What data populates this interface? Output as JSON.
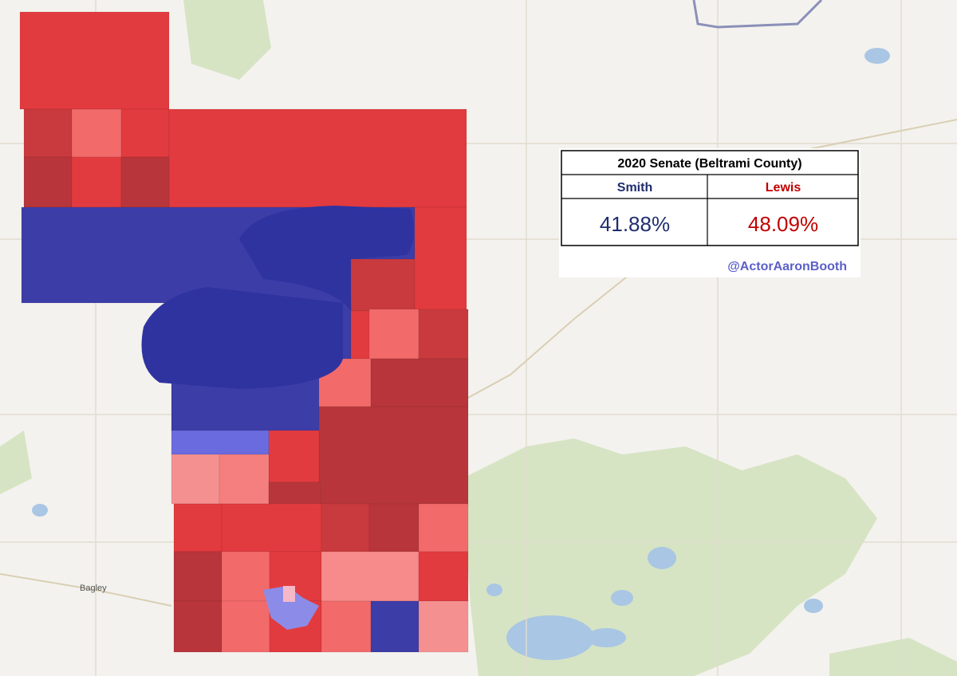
{
  "map": {
    "place_label": "Bagley"
  },
  "results_table": {
    "title": "2020 Senate (Beltrami County)",
    "candidates": [
      {
        "name": "Smith",
        "result": "41.88%"
      },
      {
        "name": "Lewis",
        "result": "48.09%"
      }
    ],
    "credit": "@ActorAaronBooth"
  }
}
